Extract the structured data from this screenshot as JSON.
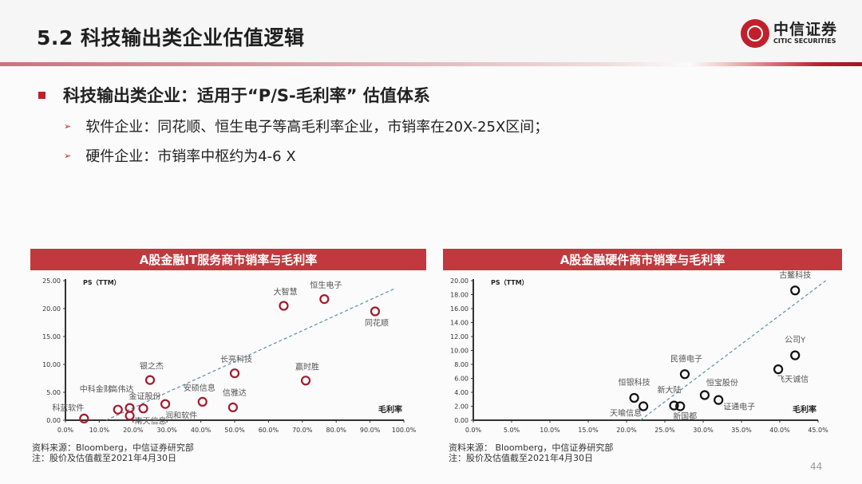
{
  "header": {
    "title": "5.2 科技输出类企业估值逻辑",
    "logo_cn": "中信证券",
    "logo_en": "CITIC SECURITIES"
  },
  "content": {
    "main_bullet": "科技输出类企业：适用于“P/S-毛利率” 估值体系",
    "sub_bullets": [
      "软件企业：同花顺、恒生电子等高毛利率企业，市销率在20X-25X区间；",
      "硬件企业：市销率中枢约为4-6 X"
    ],
    "arrow_glyph": "➢"
  },
  "colors": {
    "accent": "#c0202c",
    "banner": "#c1393f",
    "left_marker": "#a3192b",
    "right_marker": "#111111",
    "trendline": "#5a8fa8"
  },
  "footnotes": {
    "left": [
      "资料来源：Bloomberg，中信证券研究部",
      "注：股价及估值截至2021年4月30日"
    ],
    "right": [
      "资料来源： Bloomberg，中信证券研究部",
      "注：股价及估值截至2021年4月30日"
    ]
  },
  "page_number": "44",
  "chart_data": [
    {
      "type": "scatter",
      "title": "A股金融IT服务商市销率与毛利率",
      "ylabel": "PS（TTM）",
      "xlabel": "毛利率",
      "xlim": [
        0,
        100
      ],
      "ylim": [
        0,
        25
      ],
      "x_ticks": [
        "0.0%",
        "10.0%",
        "20.0%",
        "30.0%",
        "40.0%",
        "50.0%",
        "60.0%",
        "70.0%",
        "80.0%",
        "90.0%",
        "100.0%"
      ],
      "y_ticks": [
        "0.00",
        "5.00",
        "10.00",
        "15.00",
        "20.00",
        "25.00"
      ],
      "grid": false,
      "trendline": {
        "x0": 12,
        "y0": 0,
        "x1": 97,
        "y1": 23.5
      },
      "points": [
        {
          "label": "科蓝软件",
          "x": 5.5,
          "y": 0.3
        },
        {
          "label": "中科金财",
          "x": 15.5,
          "y": 1.9
        },
        {
          "label": "高伟达",
          "x": 19,
          "y": 2.2
        },
        {
          "label": "南天信息",
          "x": 19,
          "y": 0.8
        },
        {
          "label": "金证股份",
          "x": 23,
          "y": 2.1
        },
        {
          "label": "银之杰",
          "x": 25,
          "y": 7.2
        },
        {
          "label": "润和软件",
          "x": 29.5,
          "y": 2.9
        },
        {
          "label": "安硕信息",
          "x": 40.5,
          "y": 3.3
        },
        {
          "label": "信雅达",
          "x": 49.5,
          "y": 2.3
        },
        {
          "label": "长亮科技",
          "x": 50,
          "y": 8.4
        },
        {
          "label": "大智慧",
          "x": 64.5,
          "y": 20.5
        },
        {
          "label": "赢时胜",
          "x": 71,
          "y": 7.1
        },
        {
          "label": "恒生电子",
          "x": 76.5,
          "y": 21.7
        },
        {
          "label": "同花顺",
          "x": 91.5,
          "y": 19.5
        }
      ]
    },
    {
      "type": "scatter",
      "title": "A股金融硬件商市销率与毛利率",
      "ylabel": "PS（TTM）",
      "xlabel": "毛利率",
      "xlim": [
        0,
        45
      ],
      "ylim": [
        0,
        20
      ],
      "x_ticks": [
        "0.0%",
        "5.0%",
        "10.0%",
        "15.0%",
        "20.0%",
        "25.0%",
        "30.0%",
        "35.0%",
        "40.0%",
        "45.0%"
      ],
      "y_ticks": [
        "0.00",
        "2.00",
        "4.00",
        "6.00",
        "8.00",
        "10.00",
        "12.00",
        "14.00",
        "16.00",
        "18.00",
        "20.00"
      ],
      "grid": false,
      "trendline": {
        "x0": 21.8,
        "y0": 0,
        "x1": 46,
        "y1": 20
      },
      "points": [
        {
          "label": "恒银科技",
          "x": 21,
          "y": 3.2
        },
        {
          "label": "天喻信息",
          "x": 22.2,
          "y": 2.0
        },
        {
          "label": "新大陆",
          "x": 26.2,
          "y": 2.1
        },
        {
          "label": "新国都",
          "x": 27,
          "y": 2.0
        },
        {
          "label": "民德电子",
          "x": 27.6,
          "y": 6.6
        },
        {
          "label": "恒宝股份",
          "x": 30.2,
          "y": 3.6
        },
        {
          "label": "证通电子",
          "x": 32,
          "y": 2.9
        },
        {
          "label": "飞天诚信",
          "x": 39.8,
          "y": 7.3
        },
        {
          "label": "公司Y",
          "x": 42,
          "y": 9.3
        },
        {
          "label": "古鳌科技",
          "x": 42,
          "y": 18.6
        }
      ]
    }
  ]
}
